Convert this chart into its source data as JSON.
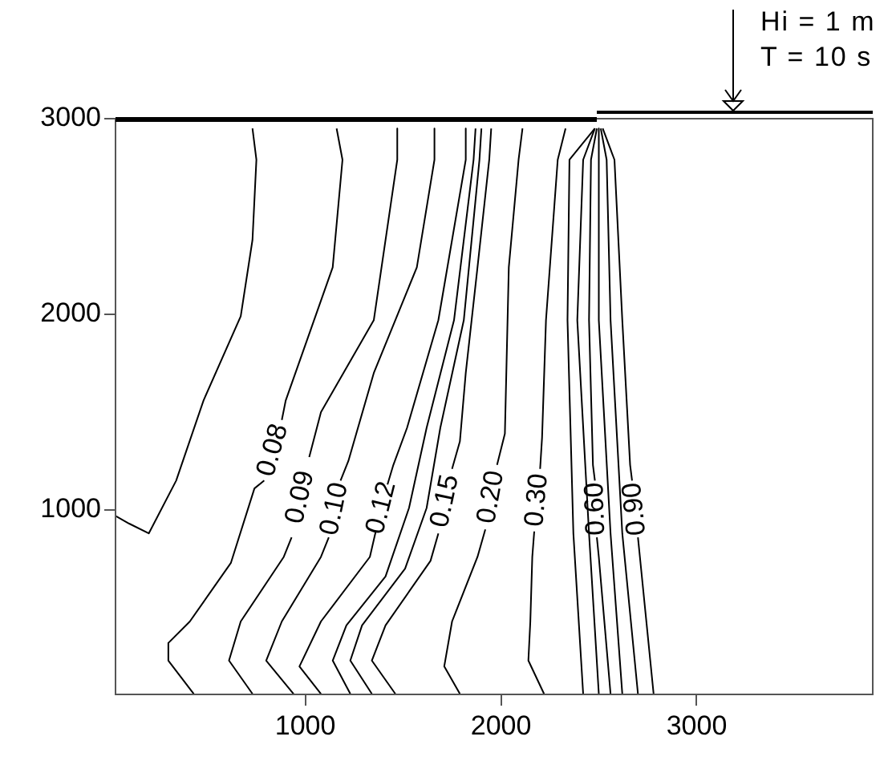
{
  "chart_data": {
    "type": "line",
    "xlim": [
      30,
      3900
    ],
    "ylim": [
      57,
      3000
    ],
    "xticks": [
      1000,
      2000,
      3000
    ],
    "yticks": [
      1000,
      2000,
      3000
    ],
    "grid": false,
    "legend": false,
    "marker": "none",
    "line_style": "solid",
    "annotations": [
      "Hi = 1 m",
      "T = 10 s"
    ],
    "series": [
      {
        "color": "#000000",
        "x": [
          30,
          100,
          200,
          340,
          480,
          670,
          730,
          750,
          730
        ],
        "values": [
          970,
          930,
          880,
          1150,
          1560,
          1990,
          2380,
          2790,
          2950
        ]
      },
      {
        "name": "0.08",
        "color": "#000000",
        "x": [
          1160,
          1190,
          1140,
          900,
          880,
          830,
          790,
          740,
          620,
          410,
          300,
          300,
          430
        ],
        "values": [
          2950,
          2790,
          2240,
          1560,
          1460,
          null,
          1150,
          1110,
          730,
          430,
          320,
          230,
          60
        ]
      },
      {
        "name": "0.09",
        "color": "#000000",
        "x": [
          1470,
          1470,
          1350,
          1080,
          1020,
          970,
          930,
          890,
          670,
          610,
          730
        ],
        "values": [
          2950,
          2790,
          1970,
          1500,
          1270,
          null,
          860,
          760,
          430,
          230,
          60
        ]
      },
      {
        "name": "0.10",
        "color": "#000000",
        "x": [
          1660,
          1660,
          1570,
          1350,
          1220,
          1180,
          1150,
          1120,
          1080,
          880,
          800,
          940
        ],
        "values": [
          2950,
          2790,
          2240,
          1700,
          1250,
          1150,
          null,
          860,
          760,
          430,
          230,
          60
        ]
      },
      {
        "name": "0.12",
        "color": "#000000",
        "x": [
          1820,
          1820,
          1680,
          1520,
          1450,
          1420,
          1390,
          1360,
          1330,
          1080,
          970,
          1080
        ],
        "values": [
          2950,
          2790,
          1970,
          1420,
          1230,
          1130,
          null,
          890,
          760,
          430,
          200,
          60
        ]
      },
      {
        "color": "#000000",
        "x": [
          1870,
          1860,
          1760,
          1620,
          1530,
          1410,
          1210,
          1140,
          1230
        ],
        "values": [
          2950,
          2790,
          1970,
          1420,
          1010,
          660,
          410,
          230,
          60
        ]
      },
      {
        "color": "#000000",
        "x": [
          1900,
          1890,
          1810,
          1690,
          1620,
          1510,
          1290,
          1230,
          1340
        ],
        "values": [
          2950,
          2790,
          1970,
          1420,
          1010,
          700,
          410,
          230,
          60
        ]
      },
      {
        "name": "0.15",
        "color": "#000000",
        "x": [
          1950,
          1940,
          1880,
          1820,
          1790,
          1750,
          1720,
          1680,
          1640,
          1410,
          1340,
          1460
        ],
        "values": [
          2950,
          2790,
          2240,
          1700,
          1350,
          1210,
          null,
          880,
          740,
          410,
          230,
          60
        ]
      },
      {
        "name": "0.20",
        "color": "#000000",
        "x": [
          2110,
          2090,
          2040,
          2020,
          1980,
          1950,
          1920,
          1880,
          1750,
          1710,
          1790
        ],
        "values": [
          2950,
          2790,
          2240,
          1390,
          1230,
          null,
          900,
          760,
          430,
          200,
          60
        ]
      },
      {
        "name": "0.30",
        "color": "#000000",
        "x": [
          2330,
          2290,
          2230,
          2210,
          2200,
          2185,
          2170,
          2160,
          2150,
          2140,
          2220
        ],
        "values": [
          2950,
          2790,
          1970,
          1370,
          1210,
          null,
          890,
          760,
          430,
          230,
          60
        ]
      },
      {
        "color": "#000000",
        "x": [
          2480,
          2350,
          2340,
          2370,
          2420
        ],
        "values": [
          2950,
          2790,
          1970,
          880,
          60
        ]
      },
      {
        "color": "#000000",
        "x": [
          2480,
          2420,
          2390,
          2450,
          2500
        ],
        "values": [
          2950,
          2790,
          1970,
          880,
          60
        ]
      },
      {
        "name": "0.60",
        "color": "#000000",
        "x": [
          2490,
          2460,
          2450,
          2470,
          2480,
          2485,
          2490,
          2500,
          2560
        ],
        "values": [
          2950,
          2790,
          1970,
          1230,
          1150,
          null,
          860,
          760,
          60
        ]
      },
      {
        "color": "#000000",
        "x": [
          2500,
          2500,
          2500,
          2560,
          2620
        ],
        "values": [
          2950,
          2790,
          1970,
          880,
          60
        ]
      },
      {
        "color": "#000000",
        "x": [
          2510,
          2540,
          2560,
          2620,
          2700
        ],
        "values": [
          2950,
          2790,
          1970,
          880,
          60
        ]
      },
      {
        "name": "0.90",
        "color": "#000000",
        "x": [
          2520,
          2580,
          2620,
          2660,
          2670,
          2685,
          2700,
          2710,
          2780
        ],
        "values": [
          2950,
          2790,
          1970,
          1230,
          1150,
          null,
          860,
          760,
          60
        ]
      }
    ]
  }
}
